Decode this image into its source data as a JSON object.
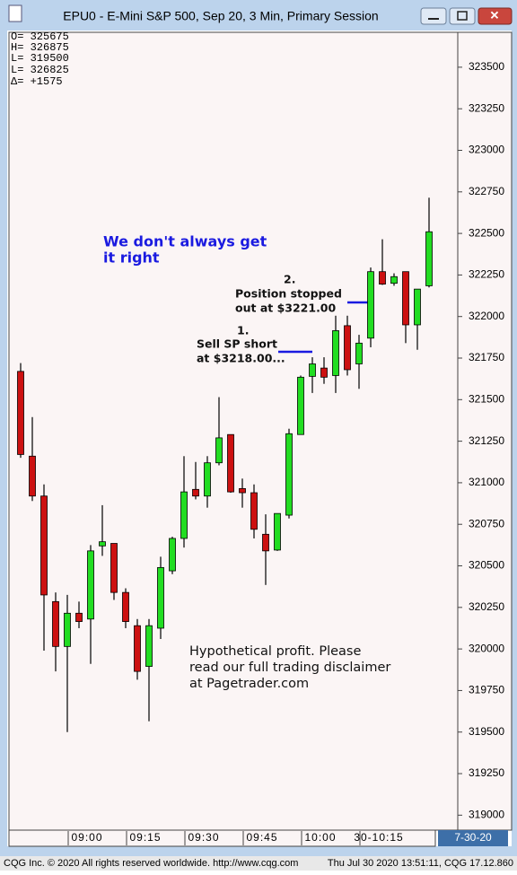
{
  "chart_data": {
    "type": "candlestick",
    "title": "EPU0 - E-Mini S&P 500, Sep 20, 3 Min, Primary Session",
    "stats": [
      "O= 325675",
      "H= 326875",
      "L= 319500",
      "L= 326825",
      "Δ=   +1575"
    ],
    "categories": [
      null,
      null,
      null,
      null,
      "09:00",
      null,
      null,
      null,
      null,
      "09:15",
      null,
      null,
      null,
      null,
      "09:30",
      null,
      null,
      null,
      null,
      "09:45",
      null,
      null,
      null,
      null,
      "10:00",
      null,
      null,
      null,
      null,
      "30-10:15",
      null,
      null,
      null,
      null,
      null,
      null
    ],
    "open": [
      321670,
      321160,
      320920,
      320285,
      320015,
      320215,
      320180,
      320620,
      320635,
      320340,
      320140,
      319895,
      320125,
      320470,
      320665,
      320960,
      320920,
      321120,
      321290,
      320965,
      320940,
      320690,
      320595,
      320805,
      321290,
      321640,
      321690,
      321645,
      321945,
      321715,
      321870,
      322270,
      322200,
      322270,
      321950,
      322185
    ],
    "high": [
      321720,
      321395,
      320990,
      320340,
      320325,
      320285,
      320625,
      320865,
      320635,
      320365,
      320180,
      320180,
      320555,
      320675,
      321160,
      321125,
      321160,
      321515,
      321290,
      321025,
      320990,
      320810,
      320815,
      321325,
      321645,
      321755,
      321755,
      322005,
      322005,
      321890,
      322295,
      322465,
      322260,
      322270,
      322165,
      322715
    ],
    "low": [
      321150,
      320890,
      319990,
      319865,
      319500,
      320125,
      319910,
      320560,
      320295,
      320125,
      319815,
      319565,
      320060,
      320450,
      320610,
      320900,
      320850,
      321105,
      320940,
      320850,
      320665,
      320385,
      320590,
      320785,
      321295,
      321540,
      321595,
      321540,
      321645,
      321565,
      321815,
      322190,
      322185,
      321840,
      321800,
      322175
    ],
    "close": [
      321170,
      320920,
      320325,
      320015,
      320215,
      320165,
      320590,
      320645,
      320340,
      320165,
      319865,
      320140,
      320490,
      320665,
      320945,
      320920,
      321120,
      321270,
      320945,
      320940,
      320720,
      320590,
      320815,
      321295,
      321635,
      321715,
      321635,
      321915,
      321680,
      321840,
      322270,
      322195,
      322240,
      321950,
      322165,
      322510
    ],
    "up_color": "#22dd22",
    "down_color": "#cc1111",
    "ylim": [
      318910,
      323710
    ],
    "yticks": [
      319000,
      319250,
      319500,
      319750,
      320000,
      320250,
      320500,
      320750,
      321000,
      321250,
      321500,
      321750,
      322000,
      322250,
      322500,
      322750,
      323000,
      323250,
      323500
    ],
    "annotations": [
      "We don't always get",
      "it right",
      "2.",
      "Position stopped",
      "out at $3221.00",
      "1.",
      "Sell SP short",
      "at $3218.00...",
      "Hypothetical profit.  Please",
      "read our full trading disclaimer",
      "at Pagetrader.com"
    ]
  },
  "footer": {
    "copyright": "CQG Inc. © 2020 All rights reserved worldwide. http://www.cqg.com",
    "timestamp": "Thu Jul 30 2020 13:51:11, CQG 17.12.860",
    "date_box": "7-30-20"
  }
}
